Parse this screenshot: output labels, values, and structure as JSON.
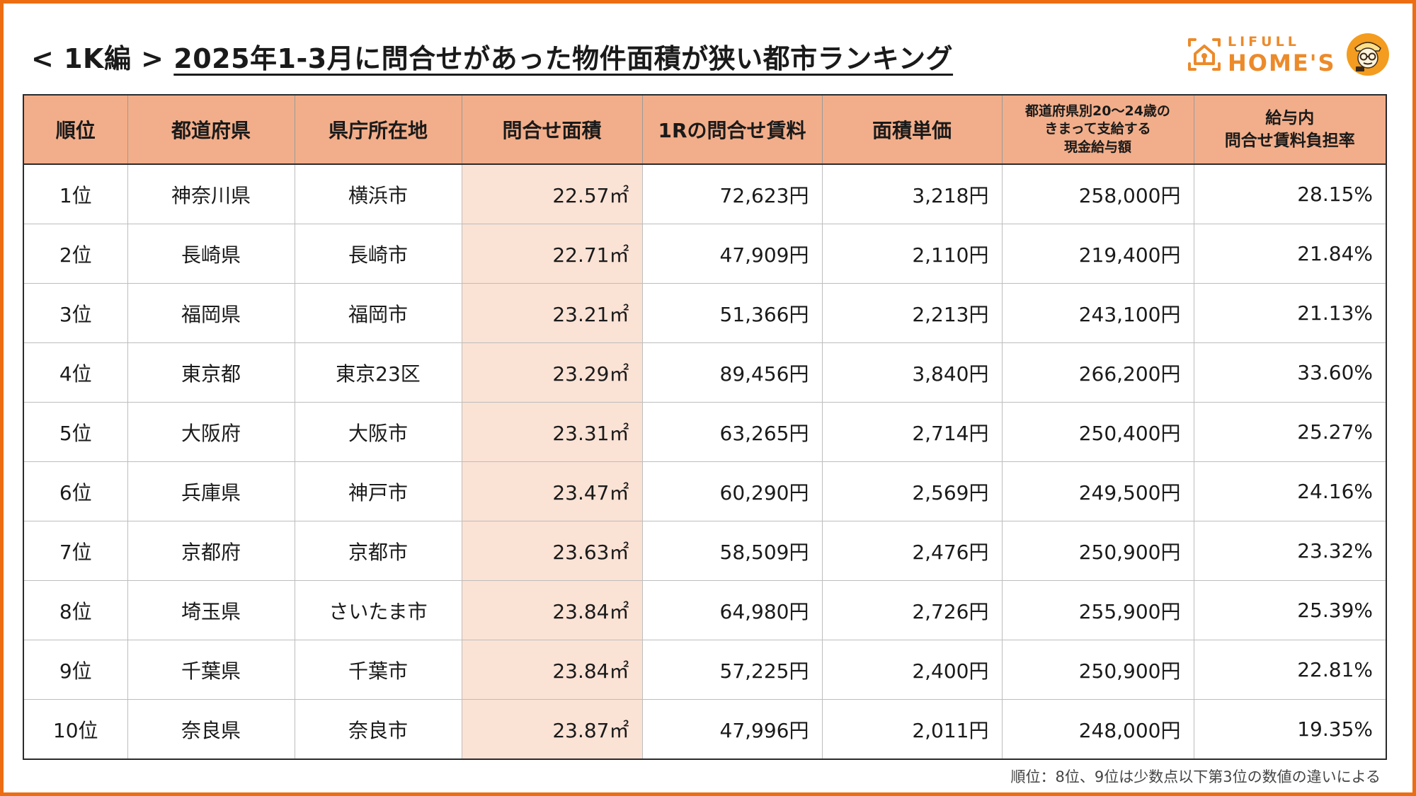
{
  "title": {
    "prefix": "< 1K編 >",
    "main": "2025年1-3月に問合せがあった物件面積が狭い都市ランキング"
  },
  "logo": {
    "line1": "LIFULL",
    "line2": "HOME'S",
    "brand_color": "#ec8a2a"
  },
  "colors": {
    "frame": "#ec6d12",
    "header_bg": "#f2ae8a",
    "highlight_column": "#fae2d5"
  },
  "table": {
    "headers": [
      "順位",
      "都道府県",
      "県庁所在地",
      "問合せ面積",
      "1Rの問合せ賃料",
      "面積単価",
      "都道府県別20〜24歳の きまって支給する 現金給与額",
      "給与内 問合せ賃料負担率"
    ],
    "rows": [
      [
        "1位",
        "神奈川県",
        "横浜市",
        "22.57㎡",
        "72,623円",
        "3,218円",
        "258,000円",
        "28.15%"
      ],
      [
        "2位",
        "長崎県",
        "長崎市",
        "22.71㎡",
        "47,909円",
        "2,110円",
        "219,400円",
        "21.84%"
      ],
      [
        "3位",
        "福岡県",
        "福岡市",
        "23.21㎡",
        "51,366円",
        "2,213円",
        "243,100円",
        "21.13%"
      ],
      [
        "4位",
        "東京都",
        "東京23区",
        "23.29㎡",
        "89,456円",
        "3,840円",
        "266,200円",
        "33.60%"
      ],
      [
        "5位",
        "大阪府",
        "大阪市",
        "23.31㎡",
        "63,265円",
        "2,714円",
        "250,400円",
        "25.27%"
      ],
      [
        "6位",
        "兵庫県",
        "神戸市",
        "23.47㎡",
        "60,290円",
        "2,569円",
        "249,500円",
        "24.16%"
      ],
      [
        "7位",
        "京都府",
        "京都市",
        "23.63㎡",
        "58,509円",
        "2,476円",
        "250,900円",
        "23.32%"
      ],
      [
        "8位",
        "埼玉県",
        "さいたま市",
        "23.84㎡",
        "64,980円",
        "2,726円",
        "255,900円",
        "25.39%"
      ],
      [
        "9位",
        "千葉県",
        "千葉市",
        "23.84㎡",
        "57,225円",
        "2,400円",
        "250,900円",
        "22.81%"
      ],
      [
        "10位",
        "奈良県",
        "奈良市",
        "23.87㎡",
        "47,996円",
        "2,011円",
        "248,000円",
        "19.35%"
      ]
    ]
  },
  "note": "順位：8位、9位は少数点以下第3位の数値の違いによる"
}
